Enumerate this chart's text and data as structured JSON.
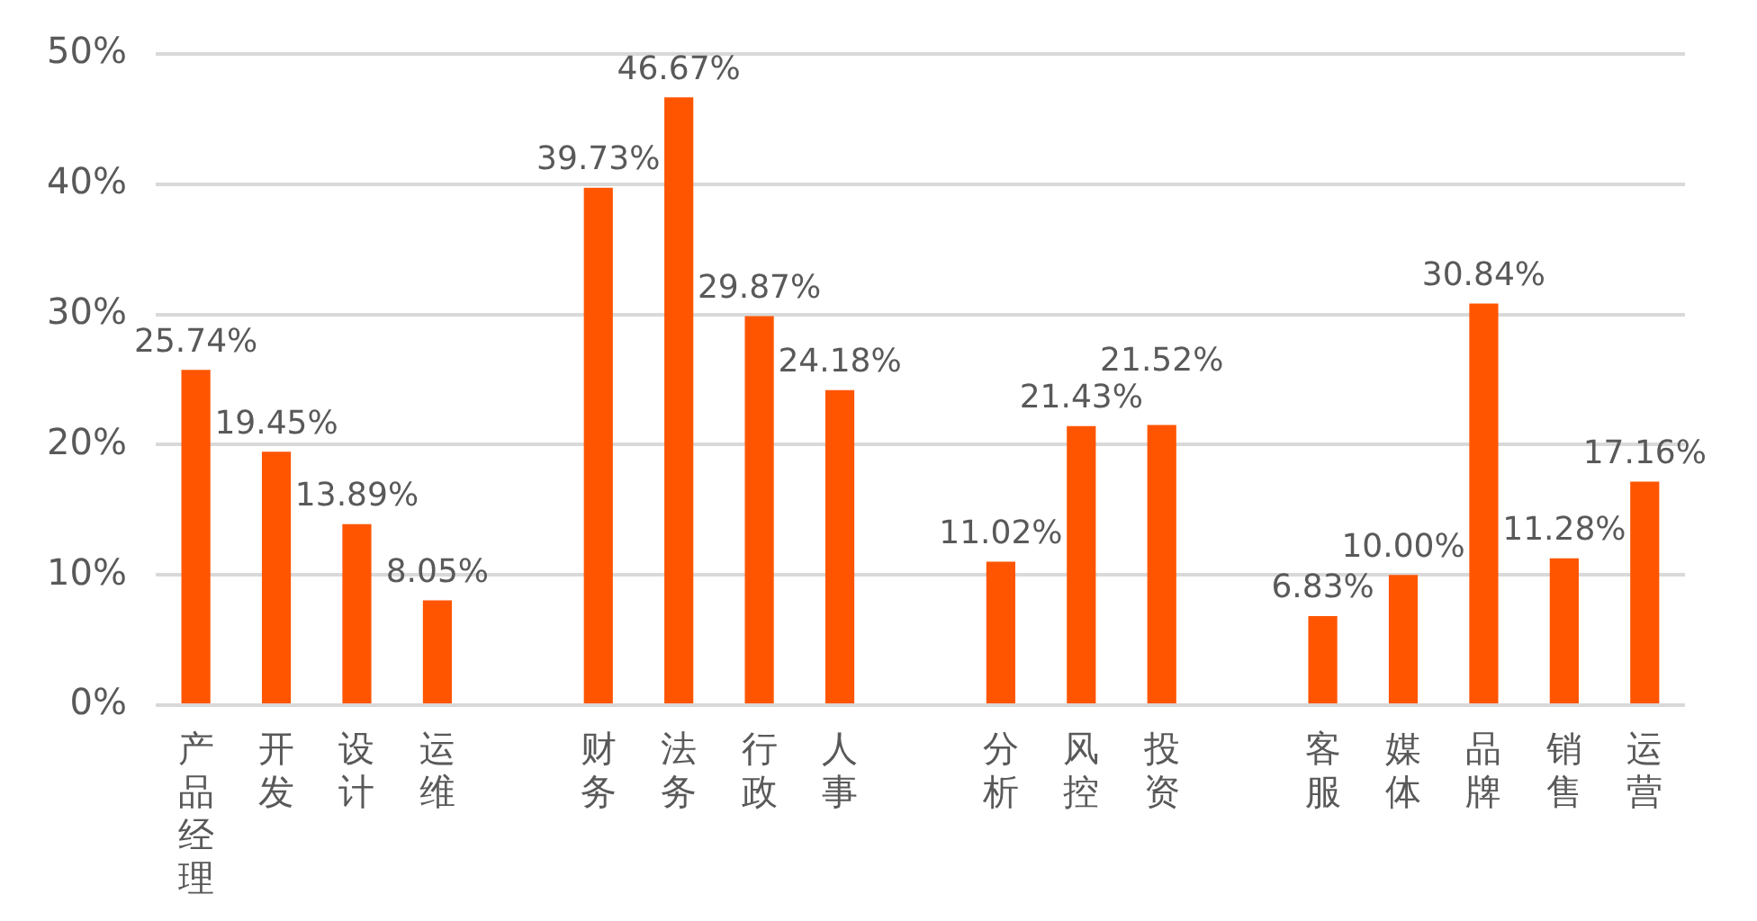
{
  "chart_data": {
    "type": "bar",
    "categories": [
      "产品经理",
      "开发",
      "设计",
      "运维",
      null,
      "财务",
      "法务",
      "行政",
      "人事",
      null,
      "分析",
      "风控",
      "投资",
      null,
      "客服",
      "媒体",
      "品牌",
      "销售",
      "运营"
    ],
    "values": [
      25.74,
      19.45,
      13.89,
      8.05,
      null,
      39.73,
      46.67,
      29.87,
      24.18,
      null,
      11.02,
      21.43,
      21.52,
      null,
      6.83,
      10.0,
      30.84,
      11.28,
      17.16
    ],
    "value_labels": [
      "25.74%",
      "19.45%",
      "13.89%",
      "8.05%",
      null,
      "39.73%",
      "46.67%",
      "29.87%",
      "24.18%",
      null,
      "11.02%",
      "21.43%",
      "21.52%",
      null,
      "6.83%",
      "10.00%",
      "30.84%",
      "11.28%",
      "17.16%"
    ],
    "color": "#ff5500",
    "ylim": [
      0,
      50
    ],
    "yticks": [
      {
        "value": 0,
        "label": "0%"
      },
      {
        "value": 10,
        "label": "10%"
      },
      {
        "value": 20,
        "label": "20%"
      },
      {
        "value": 30,
        "label": "30%"
      },
      {
        "value": 40,
        "label": "40%"
      },
      {
        "value": 50,
        "label": "50%"
      }
    ],
    "grid": "y",
    "legend": false
  }
}
